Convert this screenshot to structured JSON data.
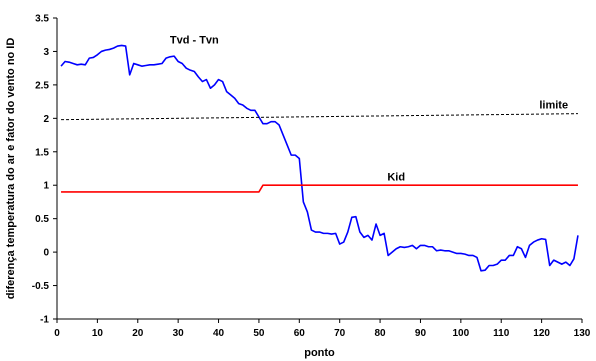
{
  "chart_data": {
    "type": "line",
    "title": "",
    "xlabel": "ponto",
    "ylabel": "diferença temperatura do ar e fator do vento no ID",
    "xlim": [
      0,
      130
    ],
    "ylim": [
      -1,
      3.5
    ],
    "xticks": [
      0,
      10,
      20,
      30,
      40,
      50,
      60,
      70,
      80,
      90,
      100,
      110,
      120,
      130
    ],
    "xtick_labels": [
      "0",
      "10",
      "20",
      "30",
      "40",
      "50",
      "60",
      "70",
      "80",
      "90",
      "100",
      "110",
      "120",
      "130"
    ],
    "yticks": [
      -1,
      -0.5,
      0,
      0.5,
      1,
      1.5,
      2,
      2.5,
      3,
      3.5
    ],
    "ytick_labels": [
      "-1",
      "-0.5",
      "0",
      "0.5",
      "1",
      "1.5",
      "2",
      "2.5",
      "3",
      "3.5"
    ],
    "grid": false,
    "legend": "none",
    "series": [
      {
        "name": "Tvd - Tvn",
        "color": "#0000ff",
        "style": "solid",
        "x": [
          1,
          2,
          3,
          4,
          5,
          6,
          7,
          8,
          9,
          10,
          11,
          12,
          13,
          14,
          15,
          16,
          17,
          18,
          19,
          20,
          21,
          22,
          23,
          24,
          25,
          26,
          27,
          28,
          29,
          30,
          31,
          32,
          33,
          34,
          35,
          36,
          37,
          38,
          39,
          40,
          41,
          42,
          43,
          44,
          45,
          46,
          47,
          48,
          49,
          50,
          51,
          52,
          53,
          54,
          55,
          56,
          57,
          58,
          59,
          60,
          61,
          62,
          63,
          64,
          65,
          66,
          67,
          68,
          69,
          70,
          71,
          72,
          73,
          74,
          75,
          76,
          77,
          78,
          79,
          80,
          81,
          82,
          83,
          84,
          85,
          86,
          87,
          88,
          89,
          90,
          91,
          92,
          93,
          94,
          95,
          96,
          97,
          98,
          99,
          100,
          101,
          102,
          103,
          104,
          105,
          106,
          107,
          108,
          109,
          110,
          111,
          112,
          113,
          114,
          115,
          116,
          117,
          118,
          119,
          120,
          121,
          122,
          123,
          124,
          125,
          126,
          127,
          128,
          129
        ],
        "y": [
          2.78,
          2.85,
          2.84,
          2.82,
          2.8,
          2.81,
          2.8,
          2.9,
          2.91,
          2.95,
          3.0,
          3.02,
          3.03,
          3.05,
          3.08,
          3.09,
          3.08,
          2.65,
          2.82,
          2.8,
          2.78,
          2.79,
          2.8,
          2.8,
          2.81,
          2.82,
          2.9,
          2.92,
          2.93,
          2.85,
          2.82,
          2.75,
          2.72,
          2.7,
          2.62,
          2.55,
          2.58,
          2.45,
          2.5,
          2.58,
          2.55,
          2.4,
          2.35,
          2.3,
          2.22,
          2.2,
          2.15,
          2.12,
          2.12,
          2.02,
          1.92,
          1.92,
          1.95,
          1.95,
          1.9,
          1.75,
          1.6,
          1.45,
          1.45,
          1.4,
          0.75,
          0.6,
          0.33,
          0.3,
          0.3,
          0.28,
          0.28,
          0.27,
          0.28,
          0.12,
          0.15,
          0.3,
          0.52,
          0.53,
          0.3,
          0.22,
          0.25,
          0.18,
          0.42,
          0.25,
          0.28,
          -0.05,
          0.0,
          0.05,
          0.08,
          0.07,
          0.08,
          0.1,
          0.05,
          0.1,
          0.1,
          0.08,
          0.08,
          0.02,
          0.03,
          0.02,
          0.02,
          0.0,
          -0.02,
          -0.02,
          -0.03,
          -0.05,
          -0.05,
          -0.08,
          -0.28,
          -0.27,
          -0.2,
          -0.2,
          -0.18,
          -0.12,
          -0.12,
          -0.05,
          -0.05,
          0.08,
          0.05,
          -0.08,
          0.1,
          0.15,
          0.18,
          0.2,
          0.19,
          -0.2,
          -0.12,
          -0.15,
          -0.18,
          -0.15,
          -0.2,
          -0.1,
          0.25
        ]
      },
      {
        "name": "Kid",
        "color": "#ff0000",
        "style": "solid",
        "x": [
          1,
          50,
          51,
          129
        ],
        "y": [
          0.9,
          0.9,
          1.0,
          1.0
        ]
      },
      {
        "name": "limite",
        "color": "#000000",
        "style": "dashed",
        "x": [
          1,
          129
        ],
        "y": [
          1.98,
          2.07
        ]
      }
    ],
    "annotations": [
      {
        "text": "Tvd - Tvn",
        "x": 34,
        "y": 3.12
      },
      {
        "text": "limite",
        "x": 123,
        "y": 2.15
      },
      {
        "text": "Kid",
        "x": 84,
        "y": 1.07
      }
    ]
  }
}
